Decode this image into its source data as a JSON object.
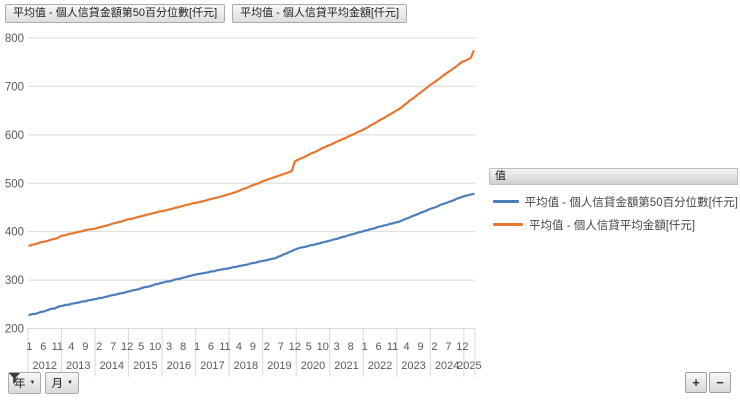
{
  "pivot_buttons": {
    "median_field": "平均值 - 個人信貸金額第50百分位數[仟元]",
    "mean_field": "平均值 - 個人信貸平均金額[仟元]"
  },
  "axis_buttons": {
    "year": "年",
    "month": "月"
  },
  "expand_buttons": {
    "expand": "+",
    "collapse": "−"
  },
  "legend": {
    "header": "值",
    "entries": [
      {
        "label": "平均值 - 個人信貸金額第50百分位數[仟元]",
        "color": "#4a7ebb"
      },
      {
        "label": "平均值 - 個人信貸平均金額[仟元]",
        "color": "#e8762c"
      }
    ]
  },
  "chart_data": {
    "type": "line",
    "title": "",
    "xlabel": "",
    "ylabel": "",
    "ylim": [
      200,
      800
    ],
    "y_ticks": [
      200,
      300,
      400,
      500,
      600,
      700,
      800
    ],
    "grid": true,
    "legend_position": "right",
    "x_unit": "month",
    "x_start": "2012-01",
    "x_end": "2025-04",
    "x_tick_indices": [
      0,
      5,
      10,
      15,
      20,
      25,
      30,
      35,
      40,
      45,
      50,
      55,
      60,
      65,
      70,
      75,
      80,
      85,
      90,
      95,
      100,
      105,
      110,
      115,
      120,
      125,
      130,
      135,
      140,
      145,
      150,
      155
    ],
    "x_tick_labels": [
      "1",
      "6",
      "11",
      "4",
      "9",
      "2",
      "7",
      "12",
      "5",
      "10",
      "3",
      "8",
      "1",
      "6",
      "11",
      "4",
      "9",
      "2",
      "7",
      "12",
      "5",
      "10",
      "3",
      "8",
      "1",
      "6",
      "11",
      "4",
      "9",
      "2",
      "7",
      "12"
    ],
    "year_cells": [
      {
        "label": "2012",
        "from": 0,
        "to": 12
      },
      {
        "label": "2013",
        "from": 12,
        "to": 24
      },
      {
        "label": "2014",
        "from": 24,
        "to": 36
      },
      {
        "label": "2015",
        "from": 36,
        "to": 48
      },
      {
        "label": "2016",
        "from": 48,
        "to": 60
      },
      {
        "label": "2017",
        "from": 60,
        "to": 72
      },
      {
        "label": "2018",
        "from": 72,
        "to": 84
      },
      {
        "label": "2019",
        "from": 84,
        "to": 96
      },
      {
        "label": "2020",
        "from": 96,
        "to": 108
      },
      {
        "label": "2021",
        "from": 108,
        "to": 120
      },
      {
        "label": "2022",
        "from": 120,
        "to": 132
      },
      {
        "label": "2023",
        "from": 132,
        "to": 144
      },
      {
        "label": "2024",
        "from": 144,
        "to": 156
      },
      {
        "label": "2025",
        "from": 156,
        "to": 160
      }
    ],
    "series": [
      {
        "name": "平均值 - 個人信貸金額第50百分位數[仟元]",
        "color": "#4a7ebb",
        "values": [
          228,
          230,
          230,
          232,
          234,
          235,
          237,
          239,
          241,
          241,
          244,
          246,
          247,
          249,
          249,
          251,
          252,
          253,
          254,
          256,
          256,
          258,
          259,
          260,
          261,
          263,
          263,
          265,
          266,
          268,
          269,
          270,
          272,
          273,
          274,
          276,
          277,
          279,
          280,
          281,
          283,
          285,
          286,
          287,
          289,
          291,
          292,
          294,
          295,
          297,
          297,
          299,
          301,
          302,
          303,
          305,
          306,
          308,
          309,
          311,
          312,
          313,
          314,
          315,
          316,
          318,
          318,
          320,
          321,
          322,
          323,
          324,
          325,
          327,
          327,
          329,
          330,
          331,
          332,
          334,
          335,
          336,
          338,
          339,
          340,
          341,
          343,
          344,
          345,
          348,
          350,
          353,
          355,
          358,
          360,
          363,
          365,
          367,
          368,
          369,
          371,
          372,
          373,
          375,
          376,
          378,
          379,
          381,
          382,
          384,
          385,
          387,
          389,
          390,
          392,
          394,
          395,
          397,
          399,
          400,
          402,
          403,
          405,
          406,
          408,
          410,
          411,
          413,
          414,
          416,
          417,
          419,
          420,
          422,
          425,
          427,
          429,
          432,
          434,
          436,
          439,
          441,
          443,
          446,
          448,
          450,
          452,
          455,
          457,
          459,
          461,
          463,
          465,
          468,
          470,
          472,
          474,
          475,
          477,
          478
        ]
      },
      {
        "name": "平均值 - 個人信貸平均金額[仟元]",
        "color": "#e8762c",
        "values": [
          371,
          373,
          374,
          376,
          378,
          379,
          380,
          382,
          384,
          385,
          387,
          390,
          392,
          393,
          395,
          396,
          397,
          399,
          400,
          401,
          403,
          404,
          405,
          406,
          407,
          409,
          410,
          412,
          413,
          415,
          417,
          418,
          420,
          421,
          423,
          425,
          426,
          427,
          429,
          430,
          432,
          433,
          435,
          436,
          438,
          439,
          441,
          442,
          443,
          444,
          446,
          447,
          449,
          450,
          452,
          453,
          455,
          456,
          458,
          459,
          460,
          461,
          463,
          464,
          466,
          467,
          469,
          470,
          472,
          473,
          475,
          477,
          478,
          480,
          482,
          484,
          487,
          489,
          491,
          494,
          496,
          498,
          500,
          503,
          505,
          507,
          509,
          511,
          513,
          515,
          517,
          519,
          521,
          523,
          526,
          545,
          548,
          551,
          553,
          556,
          559,
          562,
          564,
          567,
          570,
          573,
          575,
          578,
          580,
          583,
          586,
          588,
          591,
          593,
          596,
          599,
          601,
          604,
          607,
          609,
          612,
          615,
          619,
          622,
          625,
          629,
          632,
          635,
          639,
          642,
          645,
          649,
          652,
          656,
          661,
          665,
          670,
          674,
          678,
          683,
          687,
          692,
          696,
          701,
          705,
          709,
          713,
          717,
          722,
          726,
          730,
          734,
          738,
          742,
          747,
          751,
          753,
          756,
          759,
          773
        ]
      }
    ]
  }
}
